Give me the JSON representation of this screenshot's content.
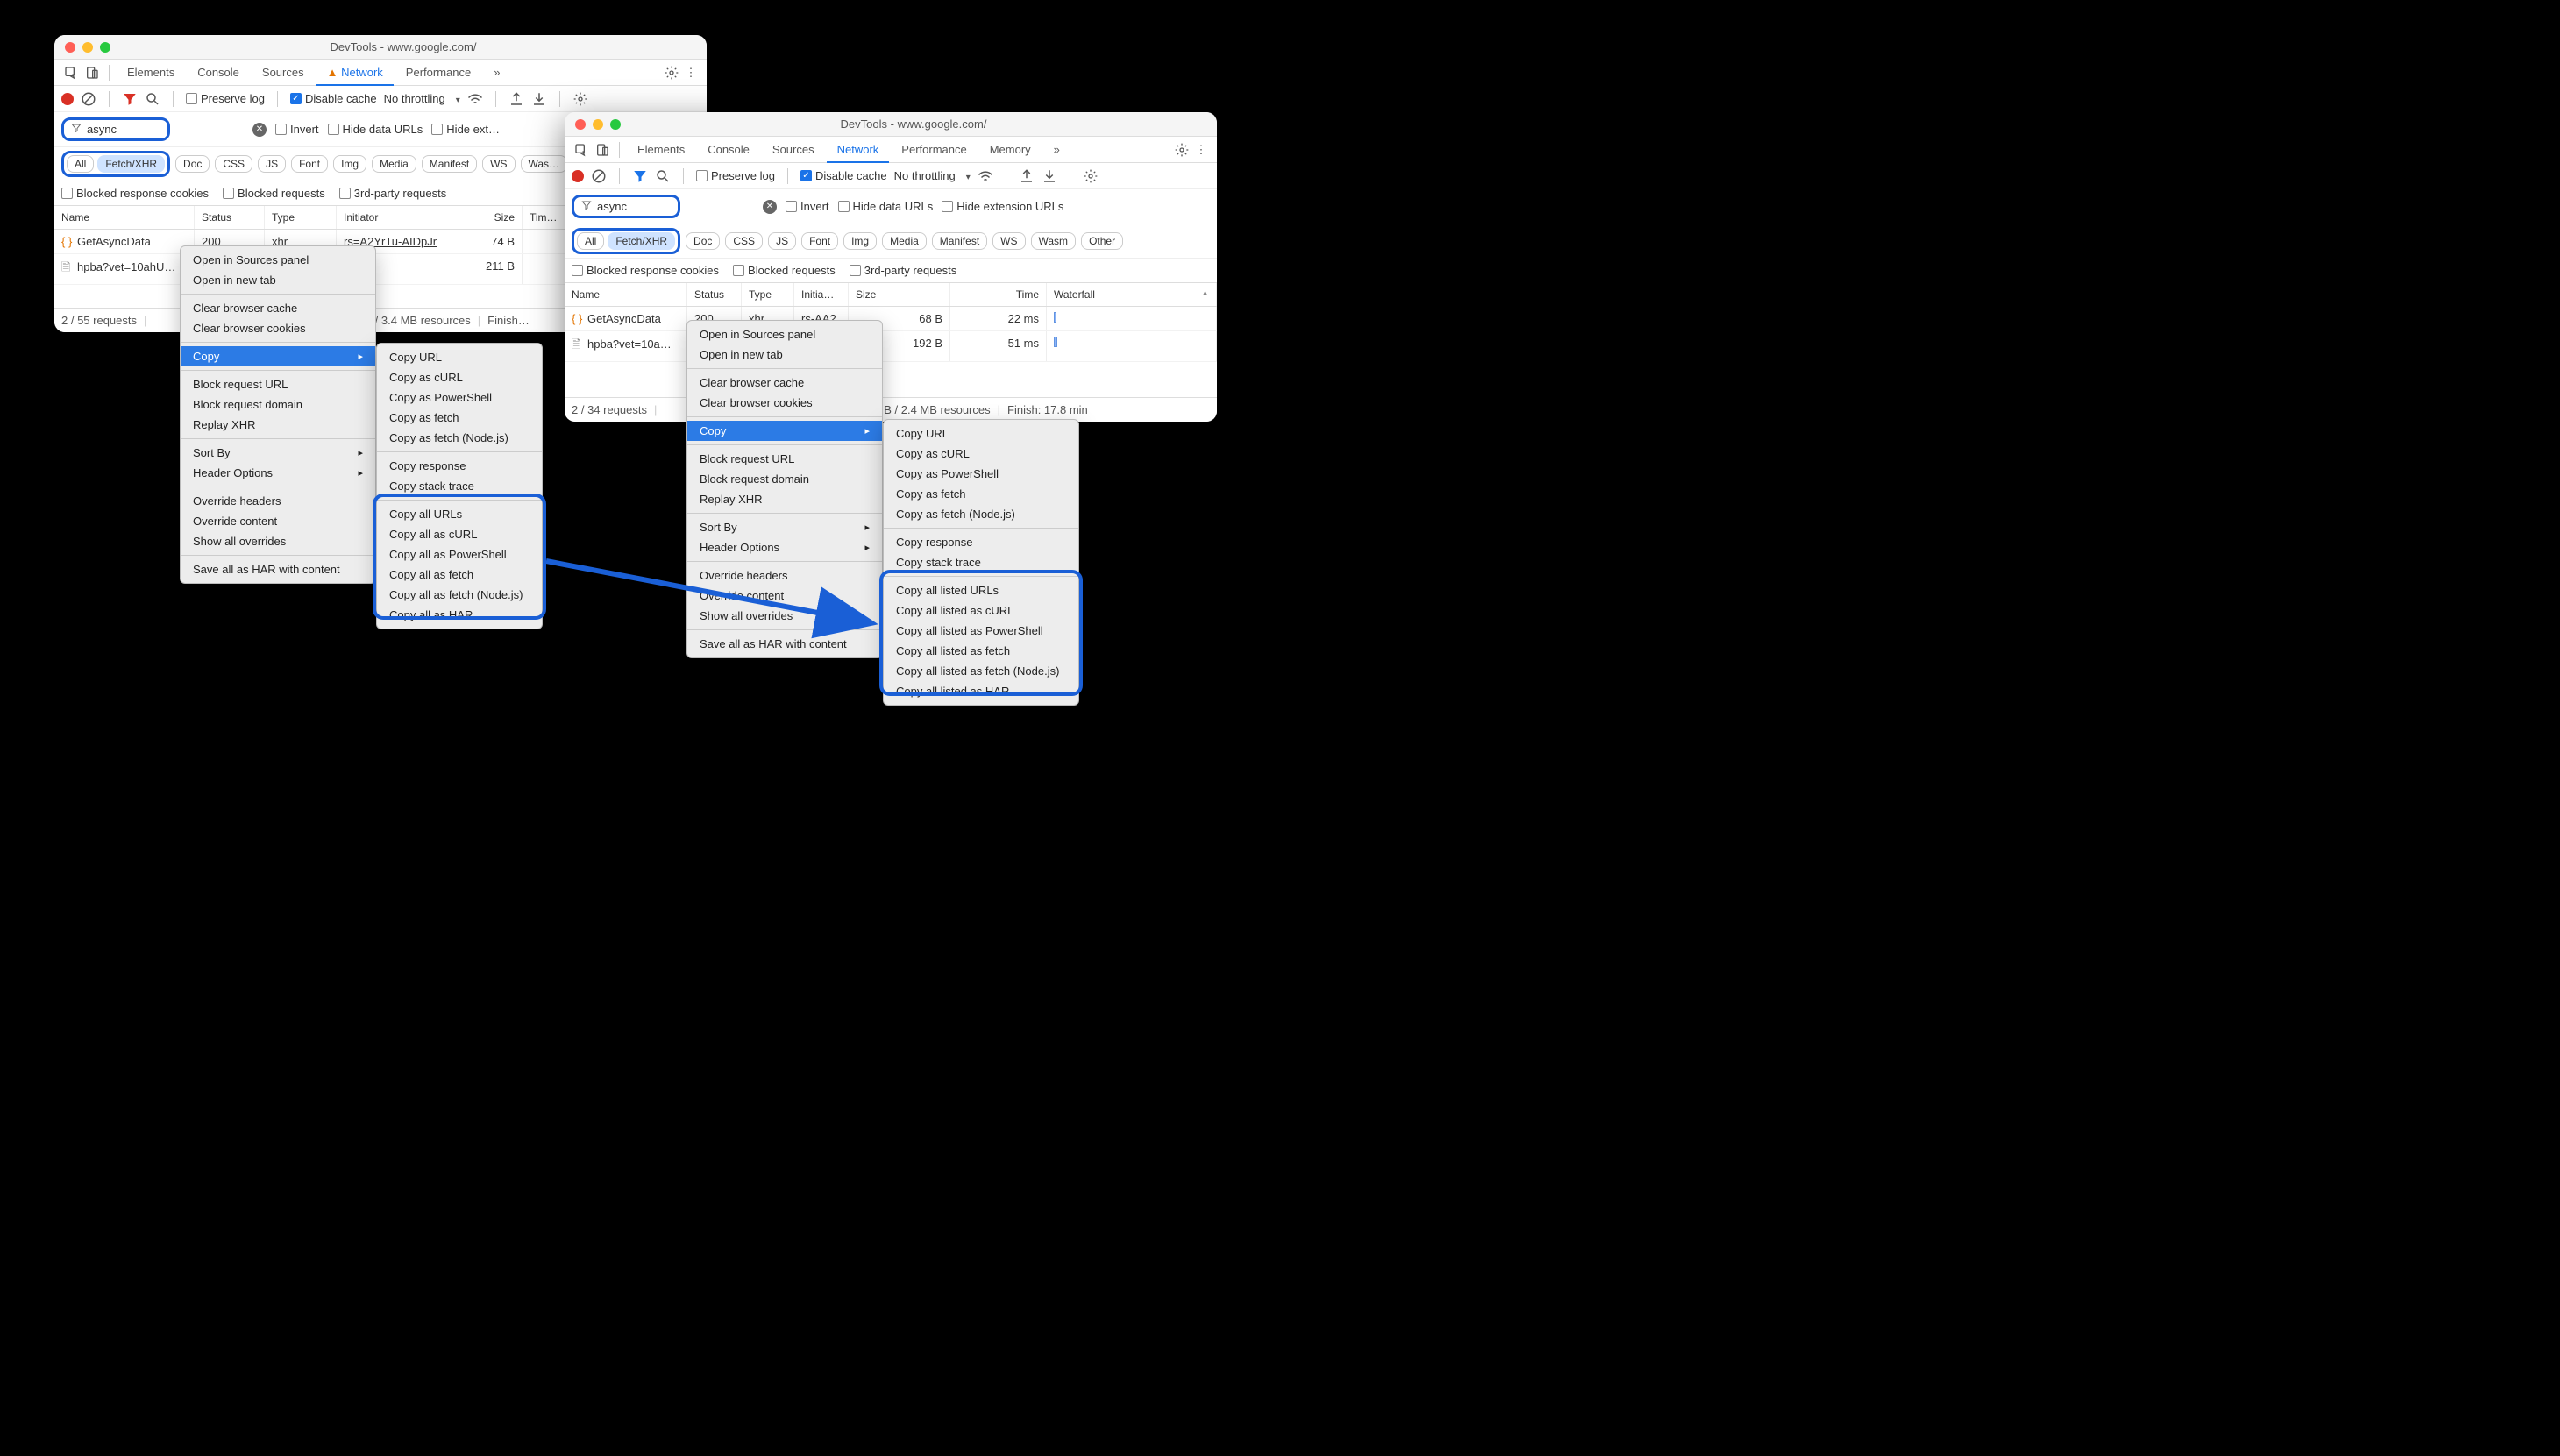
{
  "highlight_color": "#1a5fd6",
  "left_window": {
    "title": "DevTools - www.google.com/",
    "tabs": [
      "Elements",
      "Console",
      "Sources",
      "Network",
      "Performance"
    ],
    "active_tab": "Network",
    "network_warn": true,
    "overflow_chevron": "»",
    "preserve_log_label": "Preserve log",
    "disable_cache_label": "Disable cache",
    "disable_cache_checked": true,
    "throttling_label": "No throttling",
    "filter_text": "async",
    "invert_label": "Invert",
    "hide_data_label": "Hide data URLs",
    "hide_ext_label": "Hide ext…",
    "type_pills": [
      "All",
      "Fetch/XHR",
      "Doc",
      "CSS",
      "JS",
      "Font",
      "Img",
      "Media",
      "Manifest",
      "WS",
      "Was…"
    ],
    "active_pill": "Fetch/XHR",
    "blocked_cookies_label": "Blocked response cookies",
    "blocked_req_label": "Blocked requests",
    "third_party_label": "3rd-party requests",
    "columns": {
      "name": "Name",
      "status": "Status",
      "type": "Type",
      "initiator": "Initiator",
      "size": "Size",
      "time": "Tim…"
    },
    "rows": [
      {
        "icon": "xhr",
        "name": "GetAsyncData",
        "status": "200",
        "type": "xhr",
        "initiator": "rs=A2YrTu-AIDpJr",
        "size": "74 B"
      },
      {
        "icon": "doc",
        "name": "hpba?vet=10ahU…",
        "status": "",
        "type": "",
        "initiator": "ts:138",
        "size": "211 B"
      }
    ],
    "status_bar": {
      "req": "2 / 55 requests",
      "res": "B / 3.4 MB resources",
      "fin": "Finish…"
    }
  },
  "right_window": {
    "title": "DevTools - www.google.com/",
    "tabs": [
      "Elements",
      "Console",
      "Sources",
      "Network",
      "Performance",
      "Memory"
    ],
    "active_tab": "Network",
    "overflow_chevron": "»",
    "preserve_log_label": "Preserve log",
    "disable_cache_label": "Disable cache",
    "disable_cache_checked": true,
    "throttling_label": "No throttling",
    "filter_text": "async",
    "invert_label": "Invert",
    "hide_data_label": "Hide data URLs",
    "hide_ext_label": "Hide extension URLs",
    "type_pills": [
      "All",
      "Fetch/XHR",
      "Doc",
      "CSS",
      "JS",
      "Font",
      "Img",
      "Media",
      "Manifest",
      "WS",
      "Wasm",
      "Other"
    ],
    "active_pill": "Fetch/XHR",
    "blocked_cookies_label": "Blocked response cookies",
    "blocked_req_label": "Blocked requests",
    "third_party_label": "3rd-party requests",
    "columns": {
      "name": "Name",
      "status": "Status",
      "type": "Type",
      "initiator": "Initia…",
      "size": "Size",
      "time": "Time",
      "waterfall": "Waterfall"
    },
    "rows": [
      {
        "icon": "xhr",
        "name": "GetAsyncData",
        "status": "200",
        "type": "xhr",
        "initiator": "rs-AA2",
        "size": "68 B",
        "time": "22 ms"
      },
      {
        "icon": "doc",
        "name": "hpba?vet=10a…",
        "status": "",
        "type": "",
        "initiator": "",
        "size": "192 B",
        "time": "51 ms"
      }
    ],
    "status_bar": {
      "req": "2 / 34 requests",
      "res": "5 B / 2.4 MB resources",
      "fin": "Finish: 17.8 min"
    }
  },
  "context_menu_left": {
    "items": [
      {
        "label": "Open in Sources panel"
      },
      {
        "label": "Open in new tab"
      },
      {
        "div": true
      },
      {
        "label": "Clear browser cache"
      },
      {
        "label": "Clear browser cookies"
      },
      {
        "div": true
      },
      {
        "label": "Copy",
        "submenu": true,
        "highlighted": true
      },
      {
        "div": true
      },
      {
        "label": "Block request URL"
      },
      {
        "label": "Block request domain"
      },
      {
        "label": "Replay XHR"
      },
      {
        "div": true
      },
      {
        "label": "Sort By",
        "submenu": true
      },
      {
        "label": "Header Options",
        "submenu": true
      },
      {
        "div": true
      },
      {
        "label": "Override headers"
      },
      {
        "label": "Override content"
      },
      {
        "label": "Show all overrides"
      },
      {
        "div": true
      },
      {
        "label": "Save all as HAR with content"
      }
    ]
  },
  "copy_submenu_left": {
    "items": [
      "Copy URL",
      "Copy as cURL",
      "Copy as PowerShell",
      "Copy as fetch",
      "Copy as fetch (Node.js)",
      "—",
      "Copy response",
      "Copy stack trace",
      "—",
      "Copy all URLs",
      "Copy all as cURL",
      "Copy all as PowerShell",
      "Copy all as fetch",
      "Copy all as fetch (Node.js)",
      "Copy all as HAR"
    ]
  },
  "context_menu_right": {
    "items": [
      {
        "label": "Open in Sources panel"
      },
      {
        "label": "Open in new tab"
      },
      {
        "div": true
      },
      {
        "label": "Clear browser cache"
      },
      {
        "label": "Clear browser cookies"
      },
      {
        "div": true
      },
      {
        "label": "Copy",
        "submenu": true,
        "highlighted": true
      },
      {
        "div": true
      },
      {
        "label": "Block request URL"
      },
      {
        "label": "Block request domain"
      },
      {
        "label": "Replay XHR"
      },
      {
        "div": true
      },
      {
        "label": "Sort By",
        "submenu": true
      },
      {
        "label": "Header Options",
        "submenu": true
      },
      {
        "div": true
      },
      {
        "label": "Override headers"
      },
      {
        "label": "Override content"
      },
      {
        "label": "Show all overrides"
      },
      {
        "div": true
      },
      {
        "label": "Save all as HAR with content"
      }
    ]
  },
  "copy_submenu_right": {
    "items": [
      "Copy URL",
      "Copy as cURL",
      "Copy as PowerShell",
      "Copy as fetch",
      "Copy as fetch (Node.js)",
      "—",
      "Copy response",
      "Copy stack trace",
      "—",
      "Copy all listed URLs",
      "Copy all listed as cURL",
      "Copy all listed as PowerShell",
      "Copy all listed as fetch",
      "Copy all listed as fetch (Node.js)",
      "Copy all listed as HAR"
    ]
  }
}
